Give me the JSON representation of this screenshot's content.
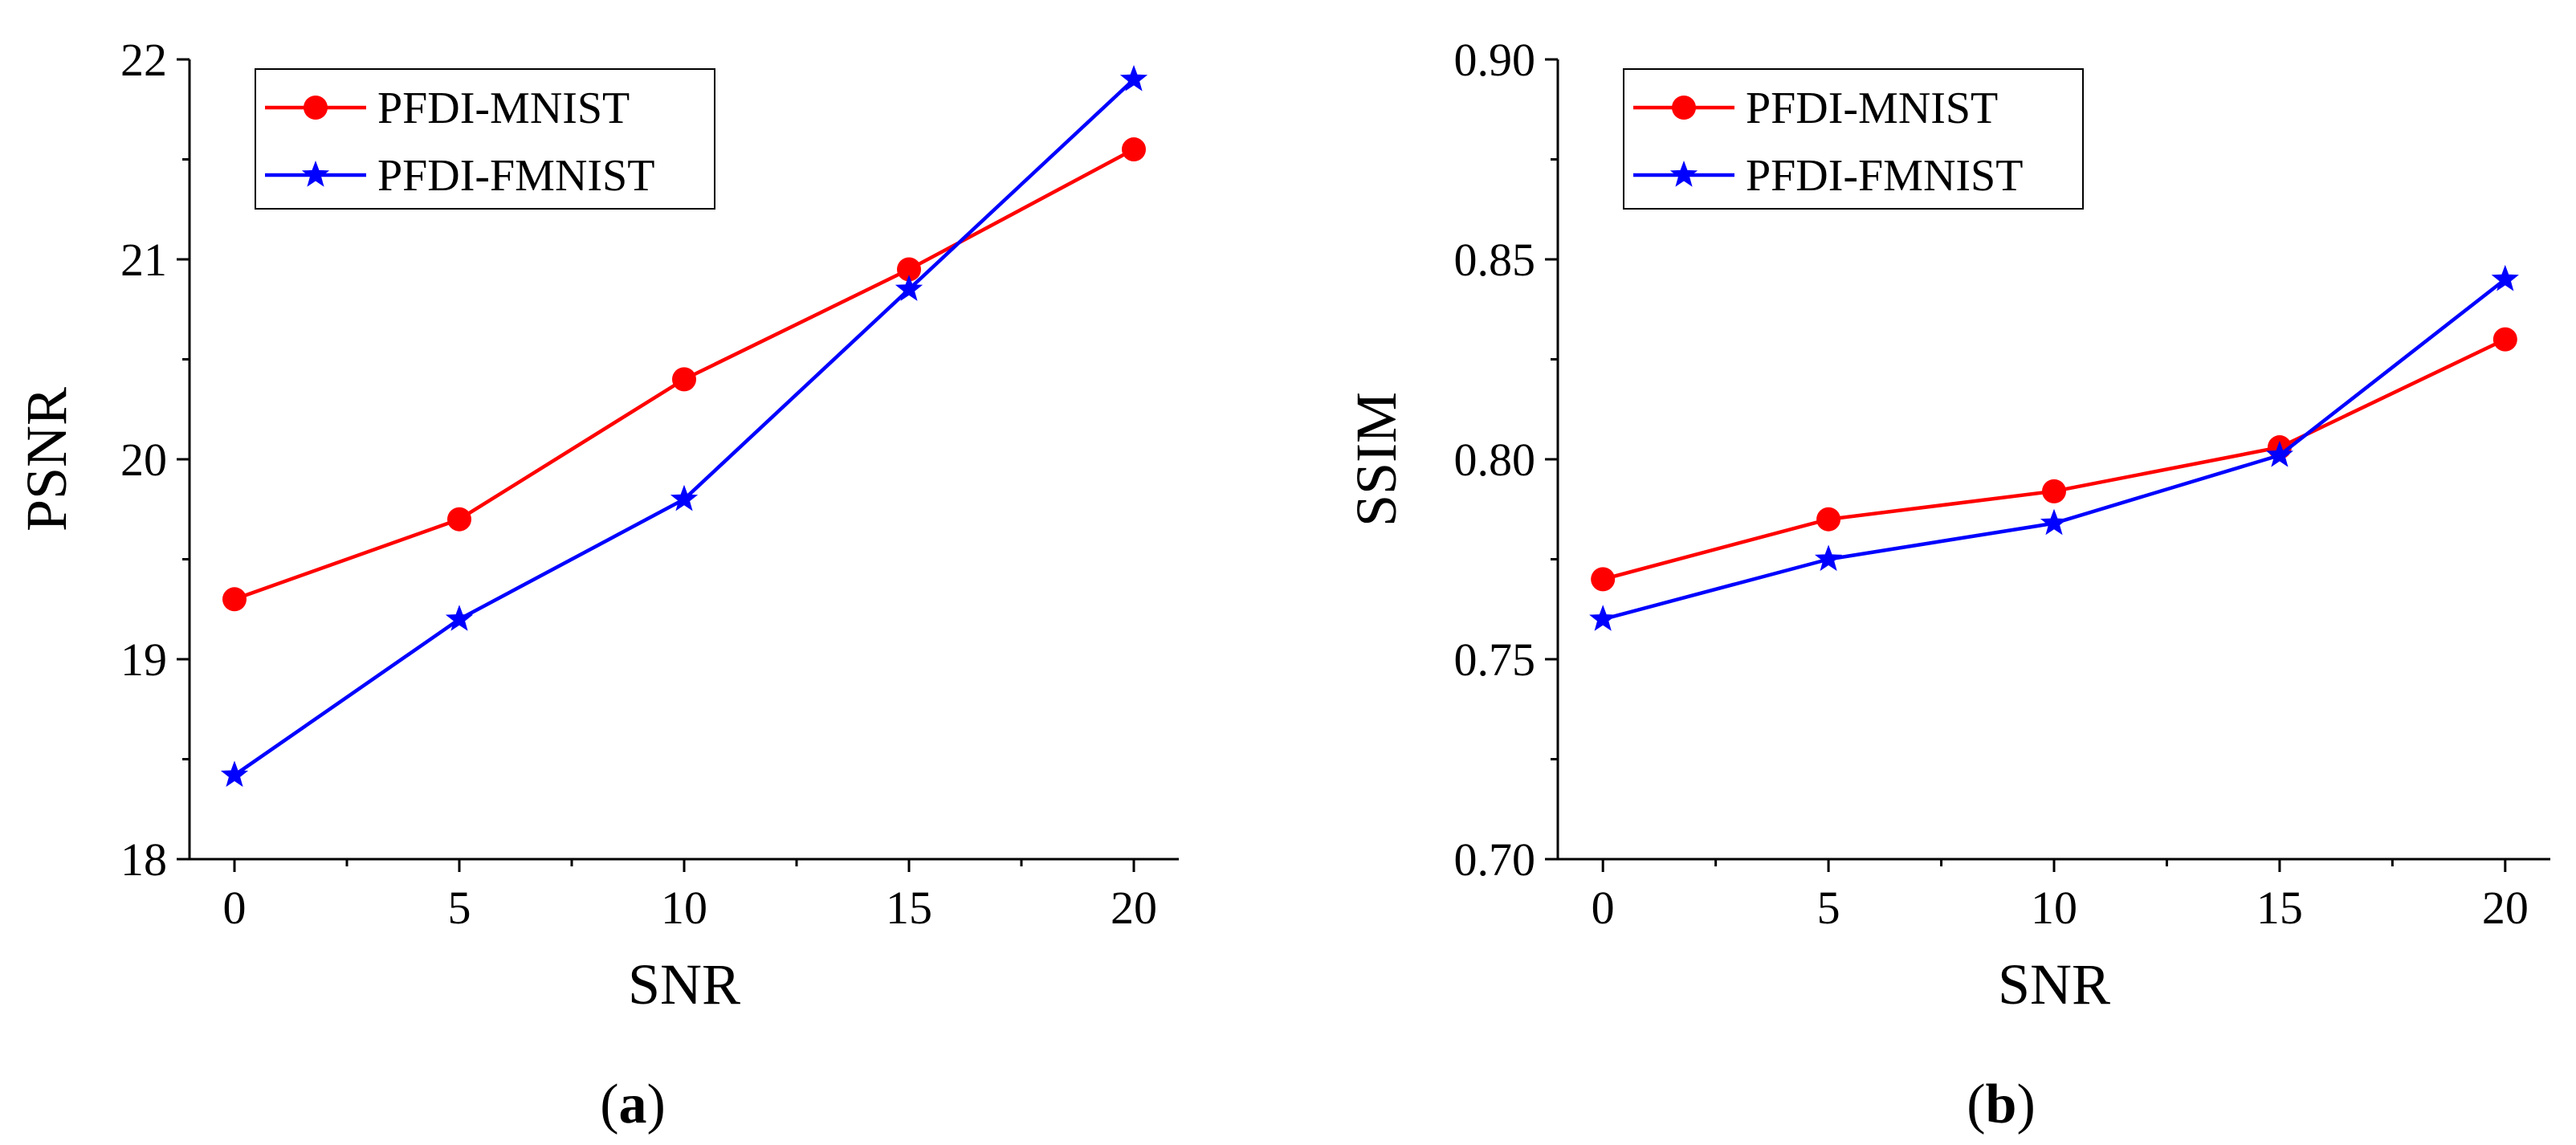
{
  "chart_data": [
    {
      "type": "line",
      "panel_label": "(a)",
      "panel_letter": "a",
      "xlabel": "SNR",
      "ylabel": "PSNR",
      "x": [
        0,
        5,
        10,
        15,
        20
      ],
      "xticks": [
        0,
        5,
        10,
        15,
        20
      ],
      "xlim": [
        -1,
        21
      ],
      "ylim": [
        18,
        22
      ],
      "yticks": [
        18,
        19,
        20,
        21,
        22
      ],
      "ytick_labels": [
        "18",
        "19",
        "20",
        "21",
        "22"
      ],
      "legend_position": "top-left",
      "series": [
        {
          "name": "PFDI-MNIST",
          "color": "#ff0000",
          "marker": "circle",
          "values": [
            19.3,
            19.7,
            20.4,
            20.95,
            21.55
          ]
        },
        {
          "name": "PFDI-FMNIST",
          "color": "#0000ff",
          "marker": "star",
          "values": [
            18.42,
            19.2,
            19.8,
            20.85,
            21.9
          ]
        }
      ]
    },
    {
      "type": "line",
      "panel_label": "(b)",
      "panel_letter": "b",
      "xlabel": "SNR",
      "ylabel": "SSIM",
      "x": [
        0,
        5,
        10,
        15,
        20
      ],
      "xticks": [
        0,
        5,
        10,
        15,
        20
      ],
      "xlim": [
        -1,
        21
      ],
      "ylim": [
        0.7,
        0.9
      ],
      "yticks": [
        0.7,
        0.75,
        0.8,
        0.85,
        0.9
      ],
      "ytick_labels": [
        "0.70",
        "0.75",
        "0.80",
        "0.85",
        "0.90"
      ],
      "legend_position": "top-left",
      "series": [
        {
          "name": "PFDI-MNIST",
          "color": "#ff0000",
          "marker": "circle",
          "values": [
            0.77,
            0.785,
            0.792,
            0.803,
            0.83
          ]
        },
        {
          "name": "PFDI-FMNIST",
          "color": "#0000ff",
          "marker": "star",
          "values": [
            0.76,
            0.775,
            0.784,
            0.801,
            0.845
          ]
        }
      ]
    }
  ]
}
